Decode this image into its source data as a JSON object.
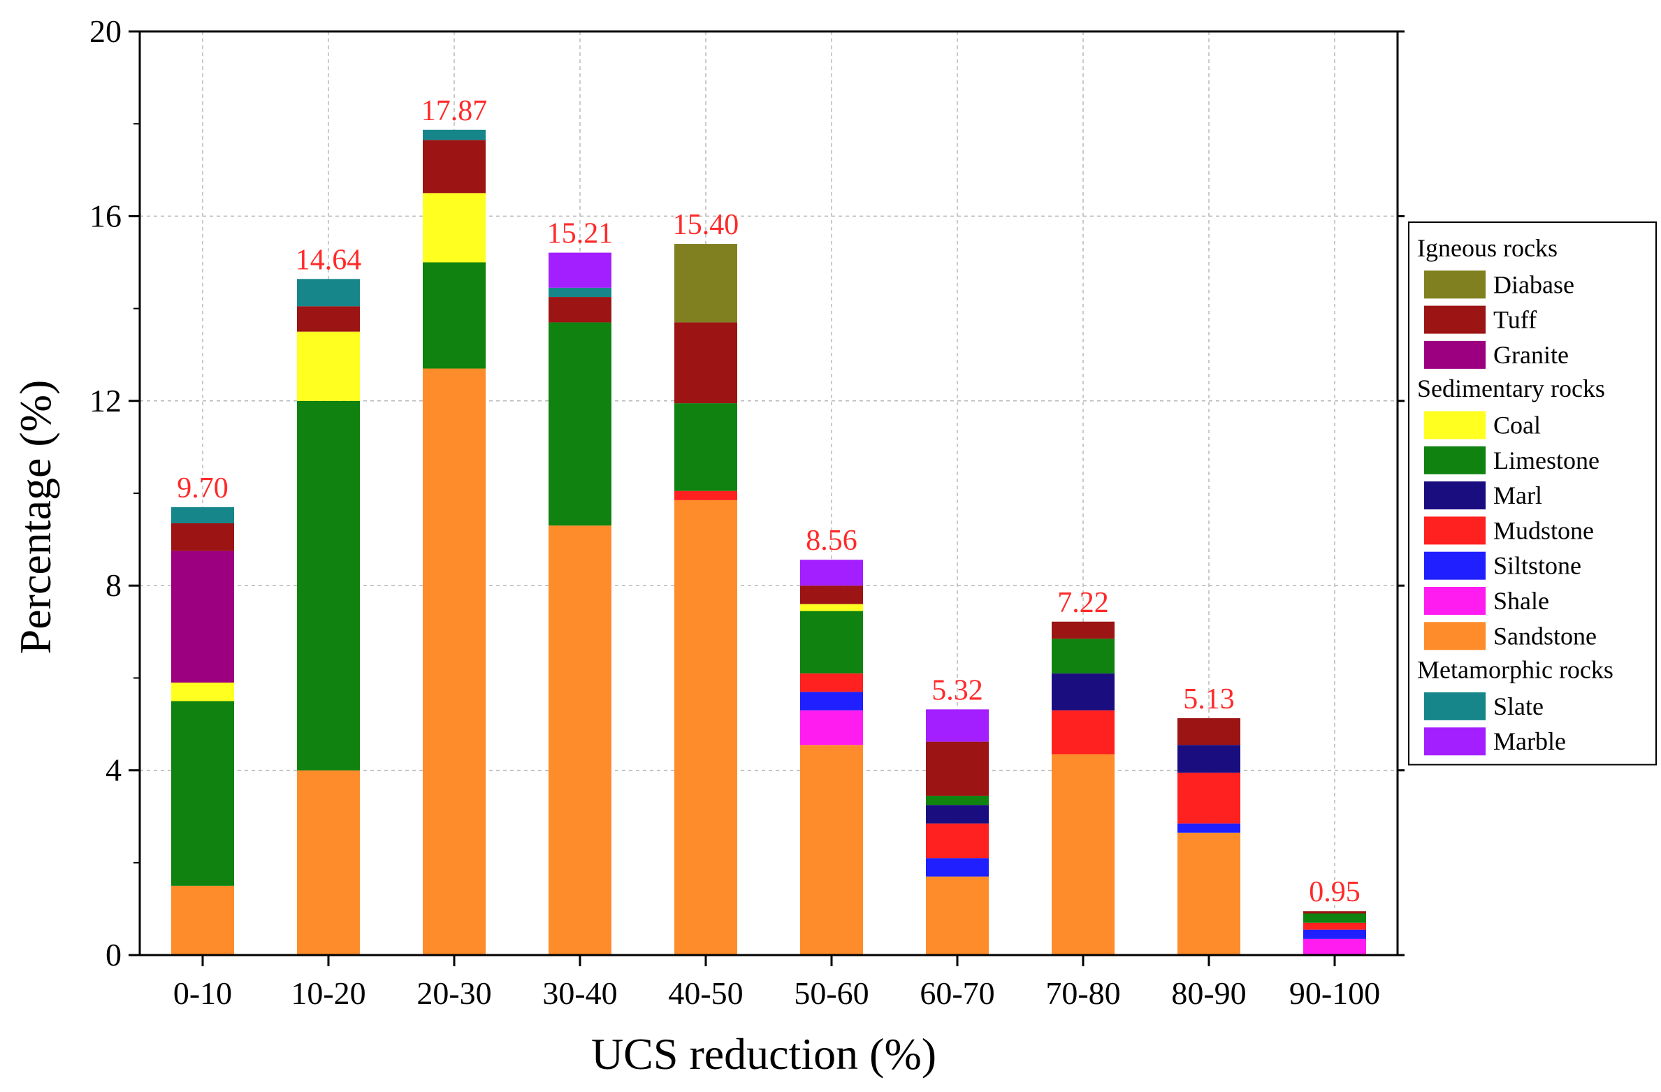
{
  "chart_data": {
    "type": "bar",
    "stacked": true,
    "title": "",
    "xlabel": "UCS reduction (%)",
    "ylabel": "Percentage (%)",
    "ylim": [
      0,
      20
    ],
    "yticks": [
      0,
      4,
      8,
      12,
      16,
      20
    ],
    "grid": true,
    "legend_position": "right",
    "categories": [
      "0-10",
      "10-20",
      "20-30",
      "30-40",
      "40-50",
      "50-60",
      "60-70",
      "70-80",
      "80-90",
      "90-100"
    ],
    "totals": [
      "9.70",
      "14.64",
      "17.87",
      "15.21",
      "15.40",
      "8.56",
      "5.32",
      "7.22",
      "5.13",
      "0.95"
    ],
    "total_label_color": "#ff2a2a",
    "legend_groups": [
      {
        "title": "Igneous rocks",
        "items": [
          "Diabase",
          "Tuff",
          "Granite"
        ]
      },
      {
        "title": "Sedimentary rocks",
        "items": [
          "Coal",
          "Limestone",
          "Marl",
          "Mudstone",
          "Siltstone",
          "Shale",
          "Sandstone"
        ]
      },
      {
        "title": "Metamorphic rocks",
        "items": [
          "Slate",
          "Marble"
        ]
      }
    ],
    "series": [
      {
        "name": "Sandstone",
        "color": "#ff8c2a",
        "values": [
          1.5,
          4.0,
          12.7,
          9.3,
          9.85,
          4.55,
          1.7,
          4.35,
          2.65,
          0.0
        ]
      },
      {
        "name": "Shale",
        "color": "#ff1cf0",
        "values": [
          0,
          0,
          0,
          0,
          0,
          0.75,
          0,
          0,
          0,
          0.35
        ]
      },
      {
        "name": "Siltstone",
        "color": "#1f1fff",
        "values": [
          0,
          0,
          0,
          0,
          0,
          0.4,
          0.4,
          0,
          0.2,
          0.2
        ]
      },
      {
        "name": "Mudstone",
        "color": "#ff2020",
        "values": [
          0,
          0,
          0,
          0,
          0.2,
          0.4,
          0.75,
          0.95,
          1.1,
          0.15
        ]
      },
      {
        "name": "Marl",
        "color": "#1a0d80",
        "values": [
          0,
          0,
          0,
          0,
          0,
          0,
          0.4,
          0.8,
          0.6,
          0
        ]
      },
      {
        "name": "Limestone",
        "color": "#0f820f",
        "values": [
          4.0,
          8.0,
          2.3,
          4.4,
          1.9,
          1.35,
          0.2,
          0.75,
          0,
          0.2
        ]
      },
      {
        "name": "Coal",
        "color": "#ffff20",
        "values": [
          0.4,
          1.5,
          1.5,
          0,
          0,
          0.15,
          0,
          0,
          0,
          0
        ]
      },
      {
        "name": "Granite",
        "color": "#9c0080",
        "values": [
          2.85,
          0,
          0,
          0,
          0,
          0,
          0,
          0,
          0,
          0
        ]
      },
      {
        "name": "Tuff",
        "color": "#9c1414",
        "values": [
          0.6,
          0.55,
          1.15,
          0.55,
          1.75,
          0.4,
          1.17,
          0.37,
          0.58,
          0.05
        ]
      },
      {
        "name": "Diabase",
        "color": "#808020",
        "values": [
          0,
          0,
          0,
          0,
          1.7,
          0,
          0,
          0,
          0,
          0
        ]
      },
      {
        "name": "Slate",
        "color": "#16868a",
        "values": [
          0.35,
          0.59,
          0.22,
          0.2,
          0,
          0,
          0,
          0,
          0,
          0
        ]
      },
      {
        "name": "Marble",
        "color": "#a31fff",
        "values": [
          0,
          0,
          0,
          0.76,
          0,
          0.56,
          0.7,
          0,
          0,
          0
        ]
      }
    ]
  }
}
